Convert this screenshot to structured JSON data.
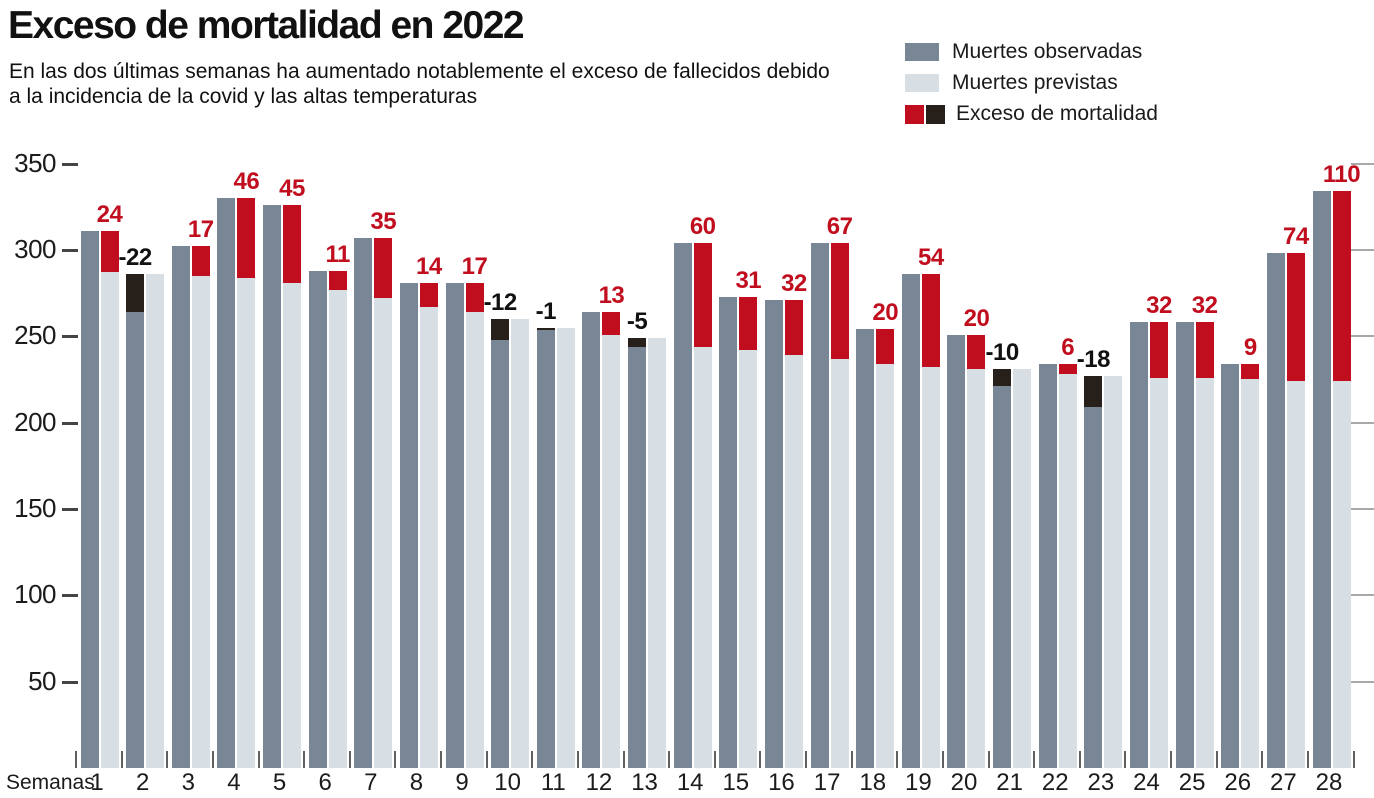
{
  "header": {
    "title": "Exceso de mortalidad en 2022",
    "subtitle_line1": "En las dos últimas semanas ha aumentado notablemente el exceso de fallecidos debido",
    "subtitle_line2": "a la incidencia de la covid y las altas temperaturas"
  },
  "legend": {
    "observed": "Muertes observadas",
    "expected": "Muertes previstas",
    "excess": "Exceso de mortalidad"
  },
  "colors": {
    "observed": "#788695",
    "expected": "#d7dee4",
    "excess_positive": "#c10e1e",
    "excess_negative": "#27201a",
    "label_positive": "#c10e1e",
    "label_negative": "#111111"
  },
  "axis": {
    "x_label": "Semanas",
    "y_ticks": [
      350,
      300,
      250,
      200,
      150,
      100,
      50
    ]
  },
  "chart_data": {
    "type": "bar",
    "title": "Exceso de mortalidad en 2022",
    "subtitle": "En las dos últimas semanas ha aumentado notablemente el exceso de fallecidos debido a la incidencia de la covid y las altas temperaturas",
    "xlabel": "Semanas",
    "ylabel": "",
    "ylim": [
      0,
      350
    ],
    "yticks": [
      50,
      100,
      150,
      200,
      250,
      300,
      350
    ],
    "grid": false,
    "legend_position": "top-right",
    "categories": [
      1,
      2,
      3,
      4,
      5,
      6,
      7,
      8,
      9,
      10,
      11,
      12,
      13,
      14,
      15,
      16,
      17,
      18,
      19,
      20,
      21,
      22,
      23,
      24,
      25,
      26,
      27,
      28
    ],
    "series": [
      {
        "name": "Muertes observadas",
        "values": [
          311,
          264,
          302,
          330,
          326,
          288,
          307,
          281,
          281,
          248,
          254,
          264,
          244,
          304,
          273,
          271,
          304,
          254,
          286,
          251,
          221,
          234,
          209,
          258,
          258,
          234,
          298,
          334
        ]
      },
      {
        "name": "Muertes previstas",
        "values": [
          287,
          286,
          285,
          284,
          281,
          277,
          272,
          267,
          264,
          260,
          255,
          251,
          249,
          244,
          242,
          239,
          237,
          234,
          232,
          231,
          231,
          228,
          227,
          226,
          226,
          225,
          224,
          224
        ]
      },
      {
        "name": "Exceso de mortalidad",
        "values": [
          24,
          -22,
          17,
          46,
          45,
          11,
          35,
          14,
          17,
          -12,
          -1,
          13,
          -5,
          60,
          31,
          32,
          67,
          20,
          54,
          20,
          -10,
          6,
          -18,
          32,
          32,
          9,
          74,
          110
        ]
      }
    ]
  }
}
